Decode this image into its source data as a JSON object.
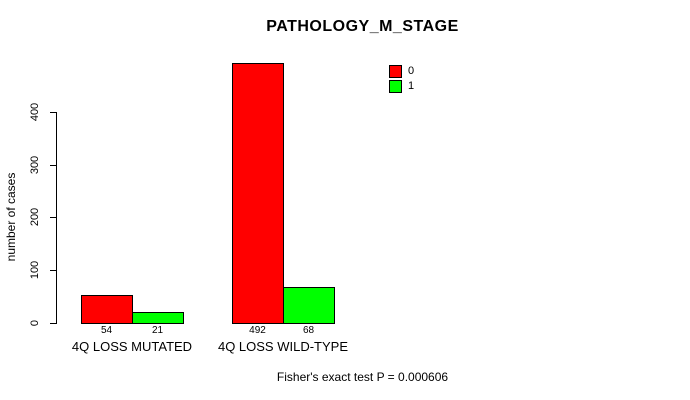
{
  "chart_data": {
    "type": "bar",
    "title": "PATHOLOGY_M_STAGE",
    "ylabel": "number of cases",
    "xlabel": "",
    "ylim": [
      0,
      492
    ],
    "yticks": [
      0,
      100,
      200,
      300,
      400
    ],
    "grid": false,
    "categories": [
      "4Q LOSS MUTATED",
      "4Q LOSS WILD-TYPE"
    ],
    "series": [
      {
        "name": "0",
        "color": "#FF0000",
        "values": [
          54,
          492
        ]
      },
      {
        "name": "1",
        "color": "#00FF00",
        "values": [
          21,
          68
        ]
      }
    ],
    "bar_value_labels": [
      [
        "54",
        "492"
      ],
      [
        "21",
        "68"
      ]
    ],
    "legend": {
      "position": "top-right",
      "entries": [
        {
          "label": "0",
          "color": "#FF0000"
        },
        {
          "label": "1",
          "color": "#00FF00"
        }
      ]
    },
    "footer": "Fisher's exact test P = 0.000606"
  }
}
